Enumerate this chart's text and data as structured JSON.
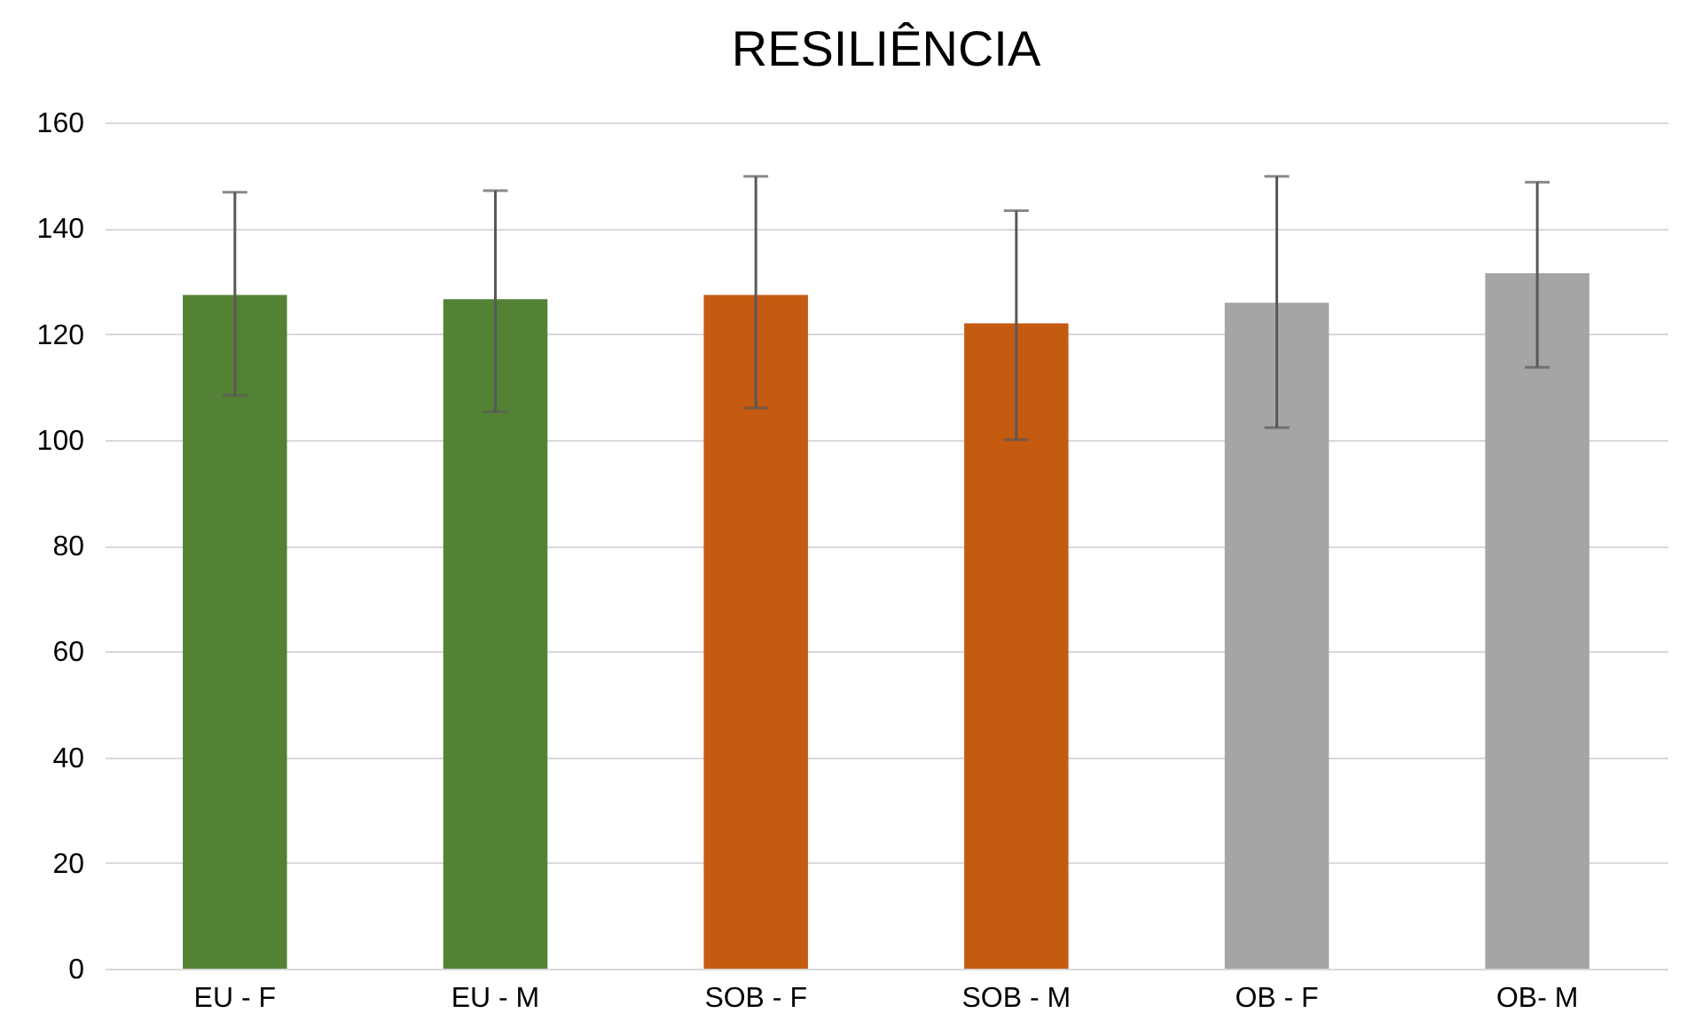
{
  "chart_data": {
    "type": "bar",
    "title": "RESILIÊNCIA",
    "categories": [
      "EU - F",
      "EU - M",
      "SOB - F",
      "SOB - M",
      "OB - F",
      "OB- M"
    ],
    "values": [
      127.4,
      126.6,
      127.4,
      122,
      125.9,
      131.5
    ],
    "colors": [
      "#548235",
      "#548235",
      "#c55a11",
      "#c55a11",
      "#a5a5a5",
      "#a5a5a5"
    ],
    "errors": [
      [
        108.4,
        146.8
      ],
      [
        105.3,
        147.1
      ],
      [
        106,
        149.8
      ],
      [
        100,
        143.3
      ],
      [
        102.3,
        149.8
      ],
      [
        113.7,
        148.7
      ]
    ],
    "ylim": [
      0,
      160
    ],
    "yticks": [
      0,
      20,
      40,
      60,
      80,
      100,
      120,
      140,
      160
    ],
    "grid": "y"
  }
}
